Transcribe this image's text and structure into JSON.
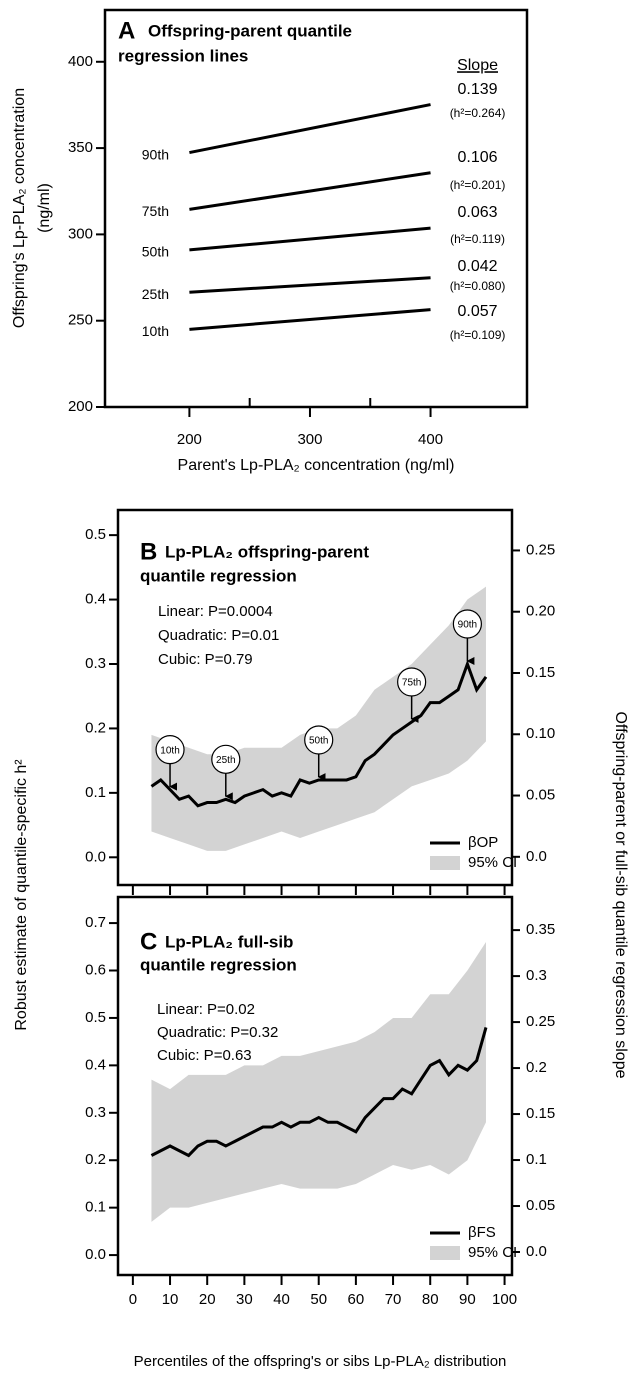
{
  "chart_data": [
    {
      "type": "line",
      "panel_label": "A",
      "title_lines": [
        "Offspring-parent quantile",
        "regression lines"
      ],
      "xlabel": "Parent's Lp-PLA₂ concentration (ng/ml)",
      "ylabel_lines": [
        "Offspring's Lp-PLA₂ concentration",
        "(ng/ml)"
      ],
      "xlim": [
        130,
        480
      ],
      "ylim": [
        200,
        430
      ],
      "xticks": [
        200,
        300,
        400
      ],
      "xminorticks": [
        250,
        350
      ],
      "yticks": [
        200,
        250,
        300,
        350,
        400
      ],
      "slope_header": "Slope",
      "series": [
        {
          "name": "90th",
          "color": "#000000",
          "x": [
            200,
            400
          ],
          "values": [
            347.4,
            375.2
          ],
          "slope": 0.139,
          "h2": "(h²=0.264)"
        },
        {
          "name": "75th",
          "color": "#000000",
          "x": [
            200,
            400
          ],
          "values": [
            314.5,
            335.7
          ],
          "slope": 0.106,
          "h2": "(h²=0.201)"
        },
        {
          "name": "50th",
          "color": "#000000",
          "x": [
            200,
            400
          ],
          "values": [
            291,
            303.6
          ],
          "slope": 0.063,
          "h2": "(h²=0.119)"
        },
        {
          "name": "25th",
          "color": "#000000",
          "x": [
            200,
            400
          ],
          "values": [
            266.5,
            274.9
          ],
          "slope": 0.042,
          "h2": "(h²=0.080)"
        },
        {
          "name": "10th",
          "color": "#000000",
          "x": [
            200,
            400
          ],
          "values": [
            245,
            256.4
          ],
          "slope": 0.057,
          "h2": "(h²=0.109)"
        }
      ]
    },
    {
      "type": "line",
      "panel_label": "B",
      "title_lines": [
        "Lp-PLA₂ offspring-parent",
        "quantile regression"
      ],
      "stats": [
        "Linear: P=0.0004",
        "Quadratic: P=0.01",
        "Cubic: P=0.79"
      ],
      "xlim": [
        -4,
        102
      ],
      "ylim": [
        -0.043,
        0.539
      ],
      "y2lim": [
        -0.023,
        0.283
      ],
      "xticks": [
        0,
        10,
        20,
        30,
        40,
        50,
        60,
        70,
        80,
        90,
        100
      ],
      "show_xtick_labels": false,
      "yticks": [
        {
          "value": 0,
          "label": "0.0"
        },
        0.1,
        0.2,
        0.3,
        0.4,
        0.5
      ],
      "y2ticks": [
        {
          "value": 0,
          "label": "0.0"
        },
        0.05,
        {
          "value": 0.1,
          "label": "0.10"
        },
        0.15,
        {
          "value": 0.2,
          "label": "0.20"
        },
        0.25
      ],
      "legend": "lower right",
      "series": [
        {
          "name": "βOP",
          "color": "#000000",
          "x": [
            5,
            7.5,
            10,
            12.5,
            15,
            17.5,
            20,
            22.5,
            25,
            27.5,
            30,
            32.5,
            35,
            37.5,
            40,
            42.5,
            45,
            47.5,
            50,
            52.5,
            55,
            57.5,
            60,
            62.5,
            65,
            67.5,
            70,
            72.5,
            75,
            77.5,
            80,
            82.5,
            85,
            87.5,
            90,
            92.5,
            95
          ],
          "values": [
            0.11,
            0.12,
            0.105,
            0.09,
            0.095,
            0.08,
            0.085,
            0.085,
            0.09,
            0.085,
            0.095,
            0.1,
            0.105,
            0.095,
            0.1,
            0.095,
            0.12,
            0.115,
            0.12,
            0.12,
            0.12,
            0.12,
            0.125,
            0.15,
            0.16,
            0.175,
            0.19,
            0.2,
            0.21,
            0.22,
            0.24,
            0.24,
            0.25,
            0.26,
            0.3,
            0.26,
            0.28
          ]
        }
      ],
      "band": {
        "name": "95% CI",
        "color": "#d3d3d3",
        "x": [
          5,
          10,
          15,
          20,
          25,
          30,
          35,
          40,
          45,
          50,
          55,
          60,
          65,
          70,
          75,
          80,
          85,
          90,
          95
        ],
        "upper": [
          0.19,
          0.18,
          0.17,
          0.16,
          0.16,
          0.17,
          0.17,
          0.17,
          0.19,
          0.2,
          0.2,
          0.22,
          0.26,
          0.28,
          0.3,
          0.33,
          0.36,
          0.4,
          0.42
        ],
        "lower": [
          0.04,
          0.03,
          0.02,
          0.01,
          0.01,
          0.02,
          0.03,
          0.04,
          0.03,
          0.04,
          0.05,
          0.06,
          0.07,
          0.09,
          0.11,
          0.12,
          0.13,
          0.15,
          0.18
        ]
      },
      "callouts": [
        {
          "label": "10th",
          "x": 10
        },
        {
          "label": "25th",
          "x": 25
        },
        {
          "label": "50th",
          "x": 50
        },
        {
          "label": "75th",
          "x": 75
        },
        {
          "label": "90th",
          "x": 90
        }
      ]
    },
    {
      "type": "line",
      "panel_label": "C",
      "title_lines": [
        "Lp-PLA₂ full-sib",
        "quantile regression"
      ],
      "stats": [
        "Linear: P=0.02",
        "Quadratic: P=0.32",
        "Cubic: P=0.63"
      ],
      "xlim": [
        -4,
        102
      ],
      "ylim": [
        -0.042,
        0.755
      ],
      "y2lim": [
        -0.025,
        0.386
      ],
      "xticks": [
        0,
        10,
        20,
        30,
        40,
        50,
        60,
        70,
        80,
        90,
        100
      ],
      "show_xtick_labels": true,
      "yticks": [
        {
          "value": 0,
          "label": "0.0"
        },
        0.1,
        0.2,
        0.3,
        0.4,
        0.5,
        0.6,
        0.7
      ],
      "y2ticks": [
        {
          "value": 0,
          "label": "0.0"
        },
        0.05,
        0.1,
        0.15,
        0.2,
        0.25,
        0.3,
        0.35
      ],
      "legend": "lower right",
      "series": [
        {
          "name": "βFS",
          "color": "#000000",
          "x": [
            5,
            7.5,
            10,
            12.5,
            15,
            17.5,
            20,
            22.5,
            25,
            27.5,
            30,
            32.5,
            35,
            37.5,
            40,
            42.5,
            45,
            47.5,
            50,
            52.5,
            55,
            57.5,
            60,
            62.5,
            65,
            67.5,
            70,
            72.5,
            75,
            77.5,
            80,
            82.5,
            85,
            87.5,
            90,
            92.5,
            95
          ],
          "values": [
            0.21,
            0.22,
            0.23,
            0.22,
            0.21,
            0.23,
            0.24,
            0.24,
            0.23,
            0.24,
            0.25,
            0.26,
            0.27,
            0.27,
            0.28,
            0.27,
            0.28,
            0.28,
            0.29,
            0.28,
            0.28,
            0.27,
            0.26,
            0.29,
            0.31,
            0.33,
            0.33,
            0.35,
            0.34,
            0.37,
            0.4,
            0.41,
            0.38,
            0.4,
            0.39,
            0.41,
            0.48
          ]
        }
      ],
      "band": {
        "name": "95% CI",
        "color": "#d3d3d3",
        "x": [
          5,
          10,
          15,
          20,
          25,
          30,
          35,
          40,
          45,
          50,
          55,
          60,
          65,
          70,
          75,
          80,
          85,
          90,
          95
        ],
        "upper": [
          0.37,
          0.35,
          0.38,
          0.38,
          0.38,
          0.4,
          0.4,
          0.42,
          0.42,
          0.43,
          0.44,
          0.45,
          0.47,
          0.5,
          0.5,
          0.55,
          0.55,
          0.6,
          0.66
        ],
        "lower": [
          0.07,
          0.1,
          0.1,
          0.11,
          0.12,
          0.13,
          0.14,
          0.15,
          0.14,
          0.14,
          0.14,
          0.15,
          0.17,
          0.19,
          0.18,
          0.19,
          0.17,
          0.2,
          0.28
        ]
      }
    }
  ],
  "shared_axes": {
    "ylabel": "Robust estimate of quantile-specific h²",
    "y2label": "Offspring-parent or full-sib quantile regression slope",
    "xlabel": "Percentiles of the offspring's or sibs Lp-PLA₂ distribution"
  }
}
